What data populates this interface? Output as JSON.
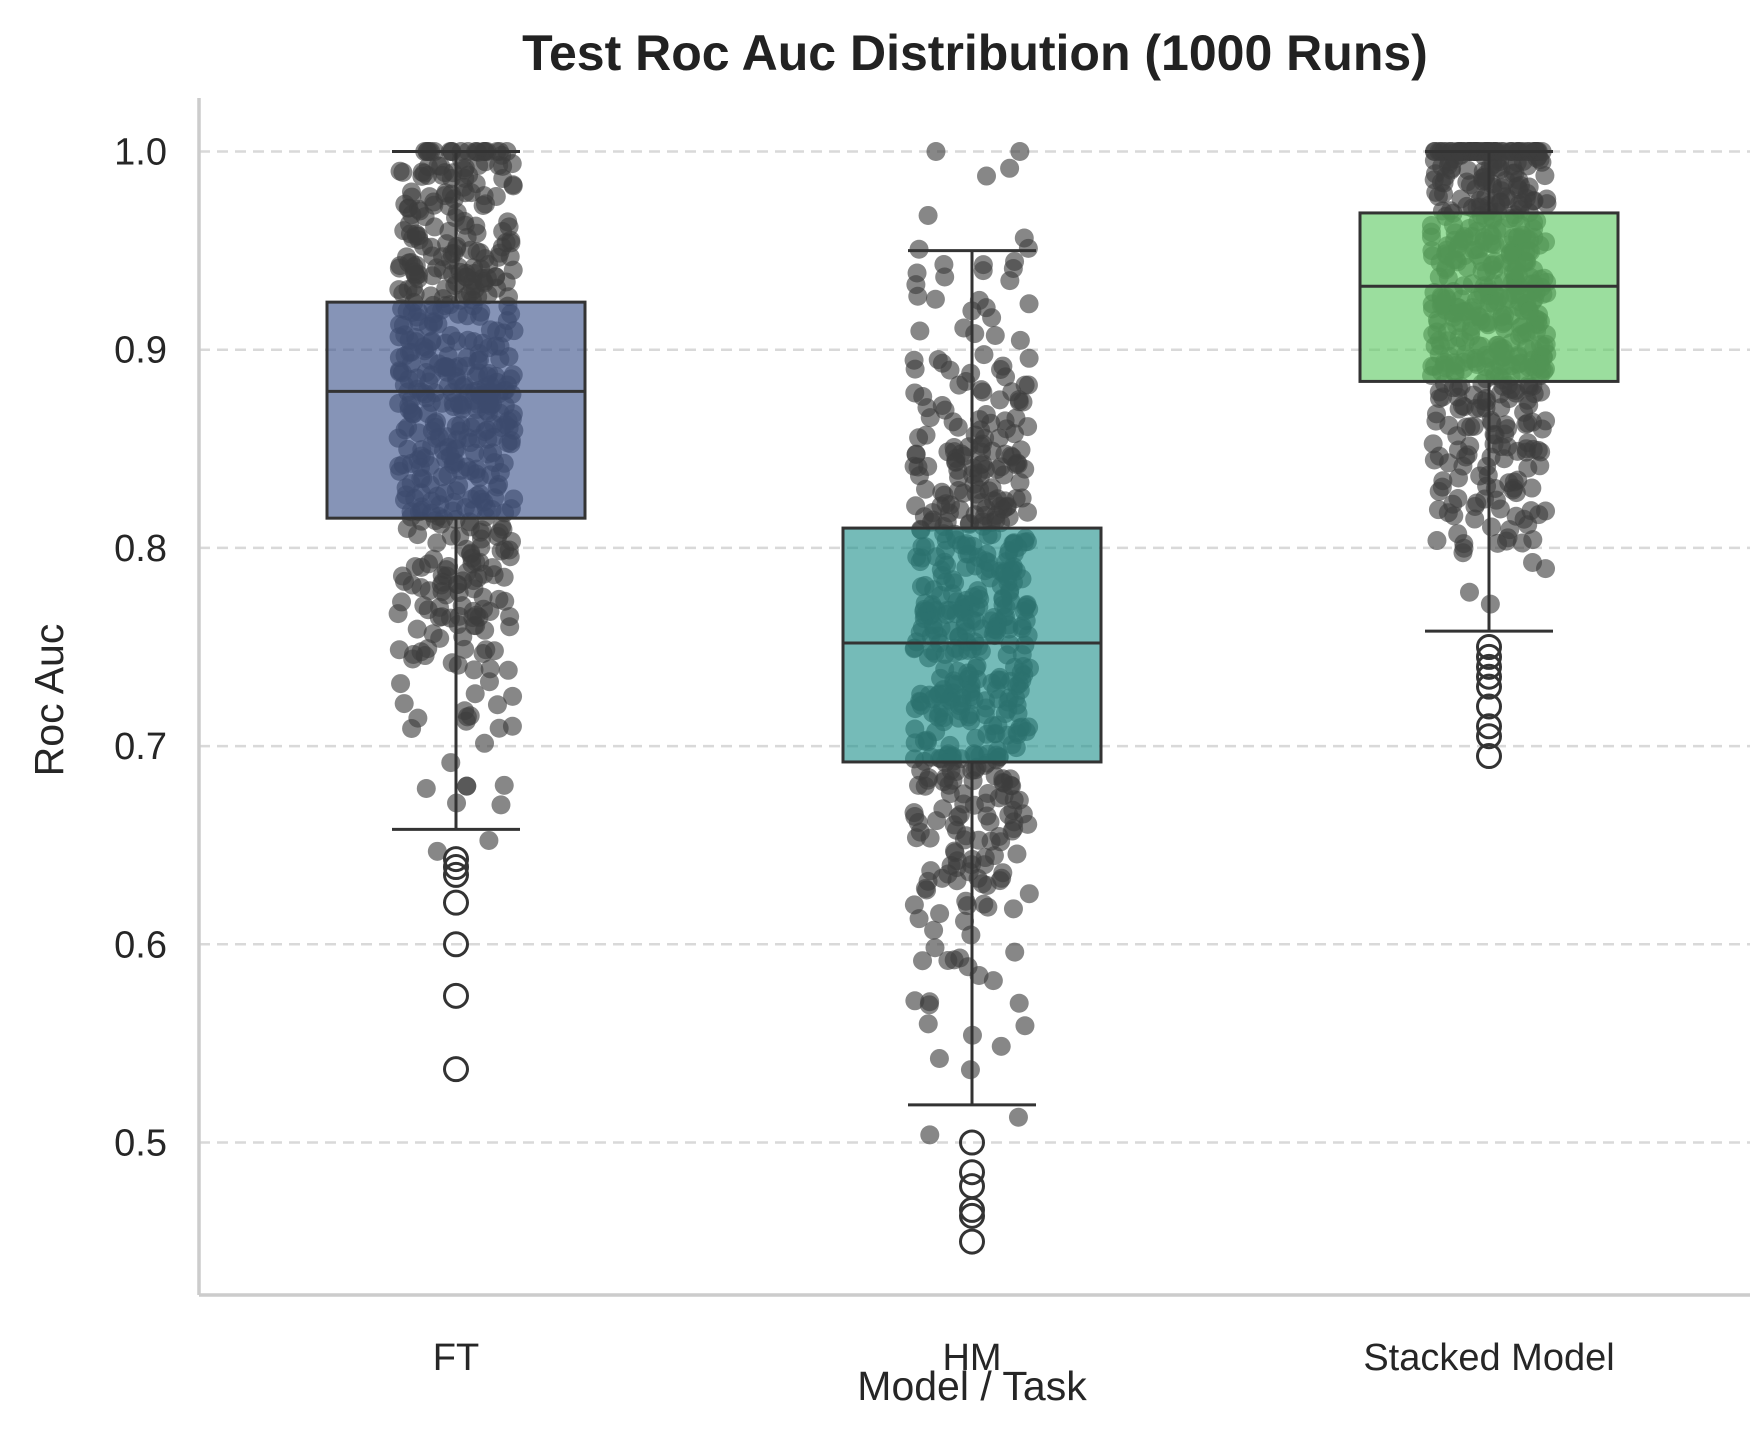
{
  "chart_data": {
    "type": "box",
    "title": "Test Roc Auc Distribution (1000 Runs)",
    "xlabel": "Model / Task",
    "ylabel": "Roc Auc",
    "ylim": [
      0.42,
      1.025
    ],
    "yticks": [
      0.5,
      0.6,
      0.7,
      0.8,
      0.9,
      1.0
    ],
    "ytick_labels": [
      "0.5",
      "0.6",
      "0.7",
      "0.8",
      "0.9",
      "1.0"
    ],
    "grid": "horizontal dashed",
    "n_runs": 1000,
    "categories": [
      "FT",
      "HM",
      "Stacked Model"
    ],
    "series": [
      {
        "category": "FT",
        "color": "#3b528b",
        "whisker_low": 0.658,
        "q1": 0.815,
        "median": 0.879,
        "q3": 0.924,
        "whisker_high": 1.0,
        "outliers": [
          0.643,
          0.639,
          0.635,
          0.621,
          0.6,
          0.574,
          0.537
        ]
      },
      {
        "category": "HM",
        "color": "#21918c",
        "whisker_low": 0.519,
        "q1": 0.692,
        "median": 0.752,
        "q3": 0.81,
        "whisker_high": 0.95,
        "outliers": [
          0.5,
          0.485,
          0.478,
          0.466,
          0.463,
          0.45
        ]
      },
      {
        "category": "Stacked Model",
        "color": "#5ec962",
        "whisker_low": 0.758,
        "q1": 0.884,
        "median": 0.932,
        "q3": 0.969,
        "whisker_high": 1.0,
        "outliers": [
          0.75,
          0.745,
          0.74,
          0.735,
          0.73,
          0.72,
          0.71,
          0.705,
          0.695
        ]
      }
    ],
    "jitter_point_color": "#3d3d3d"
  }
}
